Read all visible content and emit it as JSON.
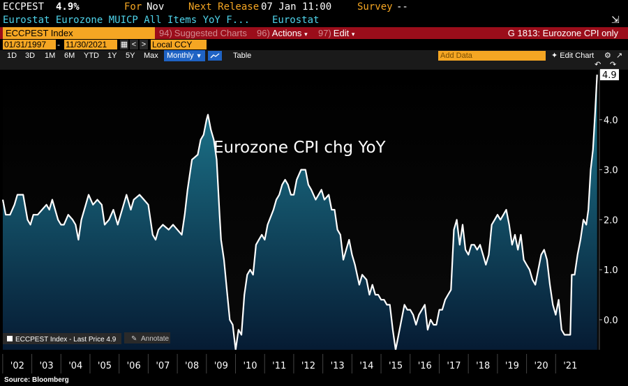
{
  "header": {
    "ticker": "ECCPEST",
    "price": "4.9%",
    "for_label": "For",
    "for_value": "Nov",
    "release_label": "Next Release",
    "release_value": "07 Jan 11:00",
    "survey_label": "Survey",
    "survey_value": "--",
    "description": "Eurostat Eurozone MUICP All Items YoY F...",
    "source_name": "Eurostat"
  },
  "toolbar": {
    "security": "ECCPEST Index",
    "suggested_num": "94)",
    "suggested": "Suggested Charts",
    "actions_num": "96)",
    "actions": "Actions",
    "edit_num": "97)",
    "edit": "Edit",
    "chart_title": "G 1813: Eurozone CPI only"
  },
  "dates": {
    "start": "01/31/1997",
    "dash": "-",
    "end": "11/30/2021",
    "currency": "Local CCY"
  },
  "ranges": [
    "1D",
    "3D",
    "1M",
    "6M",
    "YTD",
    "1Y",
    "5Y",
    "Max"
  ],
  "frequency": "Monthly",
  "table_label": "Table",
  "add_data_placeholder": "Add Data",
  "edit_chart": "Edit Chart",
  "footer": {
    "source": "Source: Bloomberg"
  },
  "colors": {
    "line": "#ffffff",
    "fill_top": "#1f7f95",
    "fill_bottom": "#061b33",
    "orange": "#f5a623",
    "cyan": "#4fd3ea",
    "toolbar_red": "#9b0d1a"
  },
  "chart_data": {
    "type": "area",
    "title": "Eurozone CPI chg YoY",
    "series_name": "ECCPEST Index - Last Price 4.9",
    "annotate_label": "Annotate",
    "last_value": 4.9,
    "last_value_label": "4.9",
    "ylim": [
      -0.6,
      5.0
    ],
    "xlim": [
      2001.5,
      2022.0
    ],
    "y_ticks": [
      0.0,
      1.0,
      2.0,
      3.0,
      4.0
    ],
    "y_tick_labels": [
      "0.0",
      "1.0",
      "2.0",
      "3.0",
      "4.0"
    ],
    "x_tick_positions": [
      2002,
      2003,
      2004,
      2005,
      2006,
      2007,
      2008,
      2009,
      2010,
      2011,
      2012,
      2013,
      2014,
      2015,
      2016,
      2017,
      2018,
      2019,
      2020,
      2021
    ],
    "x_tick_labels": [
      "'02",
      "'03",
      "'04",
      "'05",
      "'06",
      "'07",
      "'08",
      "'09",
      "'10",
      "'11",
      "'12",
      "'13",
      "'14",
      "'15",
      "'16",
      "'17",
      "'18",
      "'19",
      "'20",
      "'21"
    ],
    "points": [
      [
        2001.5,
        2.4
      ],
      [
        2001.6,
        2.1
      ],
      [
        2001.75,
        2.1
      ],
      [
        2001.9,
        2.3
      ],
      [
        2002.0,
        2.5
      ],
      [
        2002.2,
        2.5
      ],
      [
        2002.35,
        2.0
      ],
      [
        2002.45,
        1.9
      ],
      [
        2002.55,
        2.1
      ],
      [
        2002.7,
        2.1
      ],
      [
        2002.85,
        2.2
      ],
      [
        2003.0,
        2.3
      ],
      [
        2003.1,
        2.2
      ],
      [
        2003.2,
        2.4
      ],
      [
        2003.4,
        2.0
      ],
      [
        2003.5,
        1.9
      ],
      [
        2003.6,
        1.9
      ],
      [
        2003.75,
        2.1
      ],
      [
        2003.9,
        2.0
      ],
      [
        2004.0,
        1.9
      ],
      [
        2004.1,
        1.6
      ],
      [
        2004.2,
        2.0
      ],
      [
        2004.35,
        2.3
      ],
      [
        2004.45,
        2.5
      ],
      [
        2004.6,
        2.3
      ],
      [
        2004.75,
        2.4
      ],
      [
        2004.9,
        2.3
      ],
      [
        2005.0,
        1.9
      ],
      [
        2005.15,
        2.0
      ],
      [
        2005.3,
        2.2
      ],
      [
        2005.45,
        1.9
      ],
      [
        2005.6,
        2.2
      ],
      [
        2005.75,
        2.5
      ],
      [
        2005.9,
        2.2
      ],
      [
        2006.0,
        2.4
      ],
      [
        2006.2,
        2.5
      ],
      [
        2006.35,
        2.4
      ],
      [
        2006.5,
        2.3
      ],
      [
        2006.65,
        1.7
      ],
      [
        2006.75,
        1.6
      ],
      [
        2006.85,
        1.8
      ],
      [
        2007.0,
        1.9
      ],
      [
        2007.2,
        1.8
      ],
      [
        2007.35,
        1.9
      ],
      [
        2007.5,
        1.8
      ],
      [
        2007.65,
        1.7
      ],
      [
        2007.75,
        2.1
      ],
      [
        2007.85,
        2.6
      ],
      [
        2008.0,
        3.2
      ],
      [
        2008.2,
        3.3
      ],
      [
        2008.3,
        3.6
      ],
      [
        2008.4,
        3.7
      ],
      [
        2008.5,
        4.0
      ],
      [
        2008.55,
        4.1
      ],
      [
        2008.65,
        3.8
      ],
      [
        2008.75,
        3.6
      ],
      [
        2008.85,
        3.2
      ],
      [
        2008.95,
        2.1
      ],
      [
        2009.0,
        1.6
      ],
      [
        2009.1,
        1.2
      ],
      [
        2009.2,
        0.6
      ],
      [
        2009.3,
        0.0
      ],
      [
        2009.4,
        -0.1
      ],
      [
        2009.5,
        -0.6
      ],
      [
        2009.6,
        -0.2
      ],
      [
        2009.7,
        -0.3
      ],
      [
        2009.8,
        0.5
      ],
      [
        2009.9,
        0.9
      ],
      [
        2010.0,
        1.0
      ],
      [
        2010.1,
        0.9
      ],
      [
        2010.2,
        1.5
      ],
      [
        2010.3,
        1.6
      ],
      [
        2010.4,
        1.7
      ],
      [
        2010.5,
        1.6
      ],
      [
        2010.6,
        1.9
      ],
      [
        2010.8,
        2.2
      ],
      [
        2010.9,
        2.4
      ],
      [
        2011.0,
        2.5
      ],
      [
        2011.1,
        2.7
      ],
      [
        2011.2,
        2.8
      ],
      [
        2011.3,
        2.7
      ],
      [
        2011.4,
        2.5
      ],
      [
        2011.5,
        2.5
      ],
      [
        2011.6,
        2.8
      ],
      [
        2011.75,
        3.0
      ],
      [
        2011.9,
        3.0
      ],
      [
        2012.0,
        2.7
      ],
      [
        2012.1,
        2.6
      ],
      [
        2012.25,
        2.4
      ],
      [
        2012.35,
        2.5
      ],
      [
        2012.45,
        2.6
      ],
      [
        2012.55,
        2.4
      ],
      [
        2012.7,
        2.5
      ],
      [
        2012.8,
        2.2
      ],
      [
        2012.9,
        2.2
      ],
      [
        2013.0,
        1.8
      ],
      [
        2013.1,
        1.7
      ],
      [
        2013.2,
        1.2
      ],
      [
        2013.3,
        1.4
      ],
      [
        2013.4,
        1.6
      ],
      [
        2013.5,
        1.3
      ],
      [
        2013.6,
        1.1
      ],
      [
        2013.75,
        0.7
      ],
      [
        2013.85,
        0.9
      ],
      [
        2014.0,
        0.8
      ],
      [
        2014.1,
        0.5
      ],
      [
        2014.2,
        0.7
      ],
      [
        2014.3,
        0.5
      ],
      [
        2014.4,
        0.5
      ],
      [
        2014.5,
        0.4
      ],
      [
        2014.6,
        0.4
      ],
      [
        2014.7,
        0.3
      ],
      [
        2014.8,
        0.3
      ],
      [
        2014.9,
        -0.2
      ],
      [
        2015.0,
        -0.6
      ],
      [
        2015.1,
        -0.3
      ],
      [
        2015.2,
        0.0
      ],
      [
        2015.3,
        0.3
      ],
      [
        2015.4,
        0.2
      ],
      [
        2015.5,
        0.2
      ],
      [
        2015.6,
        0.1
      ],
      [
        2015.7,
        -0.1
      ],
      [
        2015.8,
        0.1
      ],
      [
        2015.9,
        0.2
      ],
      [
        2016.0,
        0.3
      ],
      [
        2016.1,
        -0.2
      ],
      [
        2016.2,
        0.0
      ],
      [
        2016.3,
        -0.1
      ],
      [
        2016.4,
        -0.1
      ],
      [
        2016.5,
        0.2
      ],
      [
        2016.6,
        0.2
      ],
      [
        2016.7,
        0.4
      ],
      [
        2016.8,
        0.5
      ],
      [
        2016.9,
        0.6
      ],
      [
        2017.0,
        1.8
      ],
      [
        2017.1,
        2.0
      ],
      [
        2017.2,
        1.5
      ],
      [
        2017.3,
        1.9
      ],
      [
        2017.4,
        1.4
      ],
      [
        2017.5,
        1.3
      ],
      [
        2017.6,
        1.5
      ],
      [
        2017.7,
        1.5
      ],
      [
        2017.8,
        1.4
      ],
      [
        2017.9,
        1.5
      ],
      [
        2018.0,
        1.3
      ],
      [
        2018.1,
        1.1
      ],
      [
        2018.2,
        1.3
      ],
      [
        2018.3,
        1.9
      ],
      [
        2018.4,
        2.0
      ],
      [
        2018.5,
        2.1
      ],
      [
        2018.6,
        2.0
      ],
      [
        2018.7,
        2.1
      ],
      [
        2018.8,
        2.2
      ],
      [
        2018.9,
        1.9
      ],
      [
        2019.0,
        1.5
      ],
      [
        2019.1,
        1.7
      ],
      [
        2019.2,
        1.4
      ],
      [
        2019.3,
        1.7
      ],
      [
        2019.4,
        1.2
      ],
      [
        2019.5,
        1.1
      ],
      [
        2019.6,
        1.0
      ],
      [
        2019.7,
        0.8
      ],
      [
        2019.8,
        0.7
      ],
      [
        2019.9,
        1.0
      ],
      [
        2020.0,
        1.3
      ],
      [
        2020.1,
        1.4
      ],
      [
        2020.2,
        1.2
      ],
      [
        2020.3,
        0.7
      ],
      [
        2020.4,
        0.3
      ],
      [
        2020.5,
        0.1
      ],
      [
        2020.6,
        0.4
      ],
      [
        2020.7,
        -0.2
      ],
      [
        2020.8,
        -0.3
      ],
      [
        2020.9,
        -0.3
      ],
      [
        2021.0,
        -0.3
      ],
      [
        2021.05,
        0.9
      ],
      [
        2021.15,
        0.9
      ],
      [
        2021.25,
        1.3
      ],
      [
        2021.35,
        1.6
      ],
      [
        2021.45,
        2.0
      ],
      [
        2021.55,
        1.9
      ],
      [
        2021.62,
        2.2
      ],
      [
        2021.7,
        3.0
      ],
      [
        2021.78,
        3.4
      ],
      [
        2021.85,
        4.1
      ],
      [
        2021.92,
        4.9
      ]
    ]
  }
}
